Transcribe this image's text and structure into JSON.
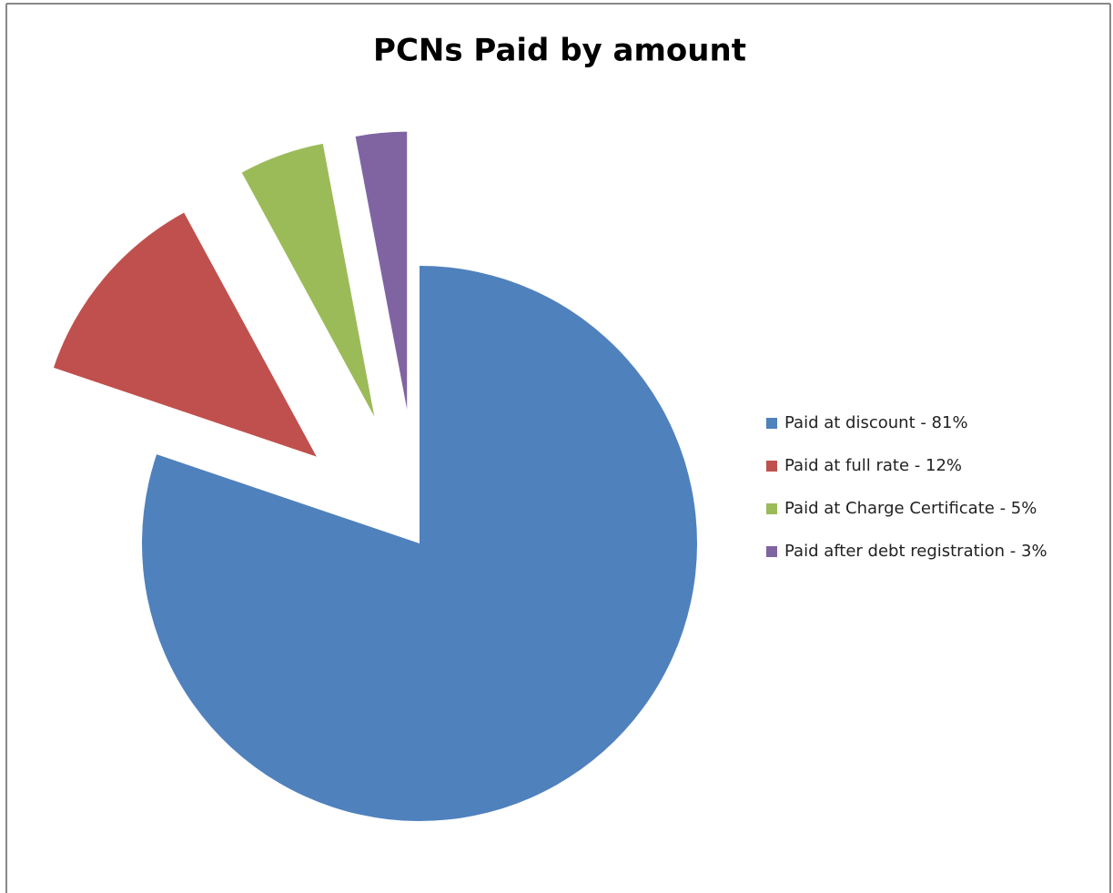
{
  "chart_data": {
    "type": "pie",
    "title": "PCNs Paid by amount",
    "categories": [
      "Paid at discount - 81%",
      "Paid at full rate - 12%",
      "Paid at Charge Certificate - 5%",
      "Paid after debt registration - 3%"
    ],
    "values": [
      81,
      12,
      5,
      3
    ],
    "colors": [
      "#4f81bd",
      "#c0504d",
      "#9bbb59",
      "#8064a2"
    ],
    "legend": "right"
  }
}
